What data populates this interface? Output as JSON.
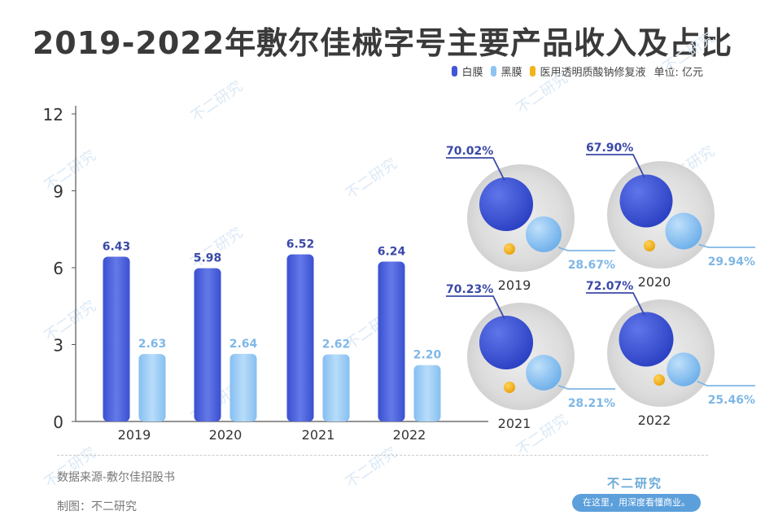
{
  "title": "2019-2022年敷尔佳械字号主要产品收入及占比",
  "legend": [
    {
      "label": "白膜",
      "color": "#4157d6"
    },
    {
      "label": "黑膜",
      "color": "#8cc4f2"
    },
    {
      "label": "医用透明质酸钠修复液",
      "color": "#f3b31c"
    }
  ],
  "unit": "单位: 亿元",
  "chart_data": [
    {
      "type": "bar",
      "categories": [
        "2019",
        "2020",
        "2021",
        "2022"
      ],
      "series": [
        {
          "name": "白膜",
          "values": [
            6.43,
            5.98,
            6.52,
            6.24
          ]
        },
        {
          "name": "黑膜",
          "values": [
            2.63,
            2.64,
            2.62,
            2.2
          ]
        }
      ],
      "value_labels": {
        "白膜": [
          "6.43",
          "5.98",
          "6.52",
          "6.24"
        ],
        "黑膜": [
          "2.63",
          "2.64",
          "2.62",
          "2.20"
        ]
      },
      "yticks": [
        "0",
        "3",
        "6",
        "9",
        "12"
      ],
      "ylim": [
        0,
        12
      ],
      "xlabel": "",
      "ylabel": ""
    },
    {
      "type": "bubble",
      "panels": [
        {
          "year": "2019",
          "white_pct": 70.02,
          "black_pct": 28.67,
          "white_label": "70.02%",
          "black_label": "28.67%"
        },
        {
          "year": "2020",
          "white_pct": 67.9,
          "black_pct": 29.94,
          "white_label": "67.90%",
          "black_label": "29.94%"
        },
        {
          "year": "2021",
          "white_pct": 70.23,
          "black_pct": 28.21,
          "white_label": "70.23%",
          "black_label": "28.21%"
        },
        {
          "year": "2022",
          "white_pct": 72.07,
          "black_pct": 25.46,
          "white_label": "72.07%",
          "black_label": "25.46%"
        }
      ]
    }
  ],
  "source": "数据来源-敷尔佳招股书",
  "credit": "制图：不二研究",
  "brand": {
    "name": "不二研究",
    "slogan": "在这里，用深度看懂商业。"
  },
  "watermark": "不二研究",
  "colors": {
    "white_dark": "#3047cc",
    "white_light": "#5e74e6",
    "black_dark": "#6fb1ea",
    "black_light": "#b3dbfa",
    "yellow": "#f3b31c",
    "label_white": "#3b49a8",
    "label_black": "#7fb7e6",
    "axis": "#444444"
  }
}
